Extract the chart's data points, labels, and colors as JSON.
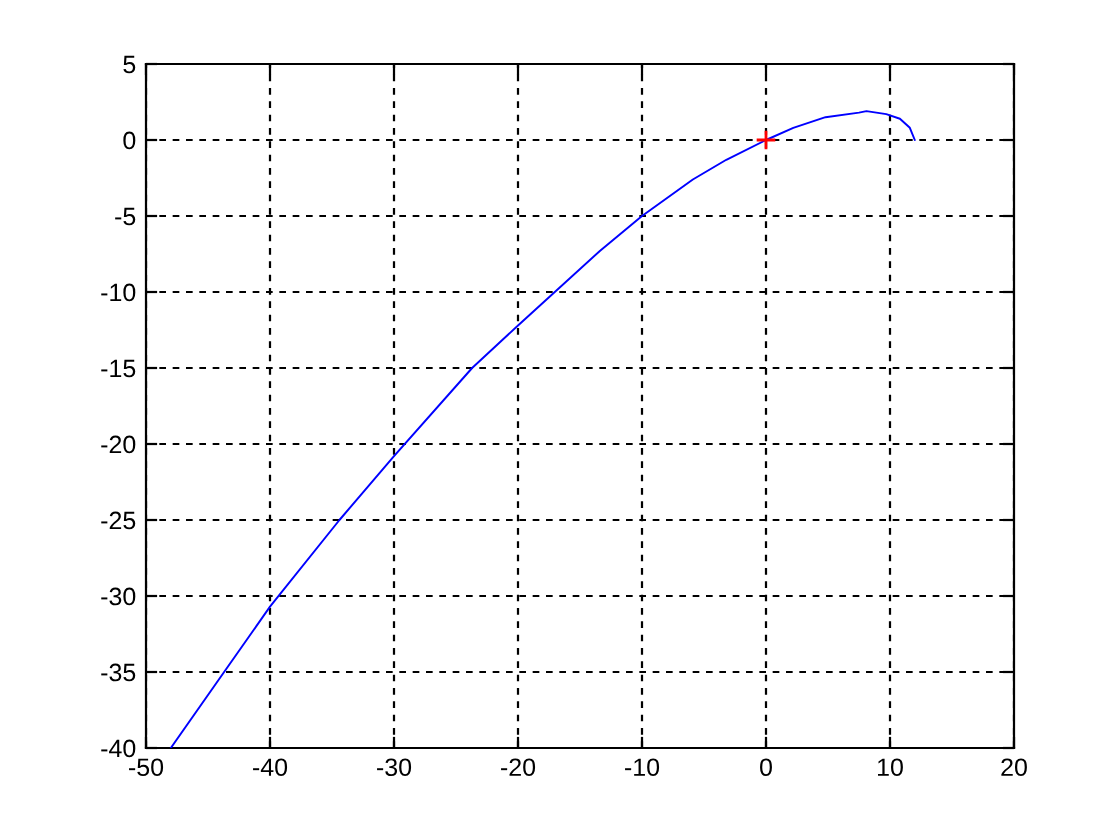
{
  "chart_data": {
    "type": "line",
    "series": [
      {
        "color": "#0000ff",
        "x": [
          -48,
          -43.7,
          -40,
          -34.4,
          -30,
          -23.7,
          -20,
          -13.4,
          -10,
          -5.9,
          -3.2,
          0,
          2.2,
          4.8,
          7.5,
          8.1,
          9.7,
          10.8,
          11.6,
          12
        ],
        "values": [
          -40,
          -35,
          -30.7,
          -25,
          -20.8,
          -15,
          -12.2,
          -7.3,
          -5,
          -2.6,
          -1.3,
          0,
          0.8,
          1.5,
          1.8,
          1.9,
          1.7,
          1.4,
          0.8,
          0
        ]
      },
      {
        "type": "scatter",
        "color": "#ff0000",
        "marker": "cross",
        "x": [
          0
        ],
        "values": [
          0
        ]
      }
    ],
    "xlim": [
      -50,
      20
    ],
    "ylim": [
      -40,
      5
    ],
    "xticks": [
      -50,
      -40,
      -30,
      -20,
      -10,
      0,
      10,
      20
    ],
    "yticks": [
      -40,
      -35,
      -30,
      -25,
      -20,
      -15,
      -10,
      -5,
      0,
      5
    ],
    "grid": true
  }
}
